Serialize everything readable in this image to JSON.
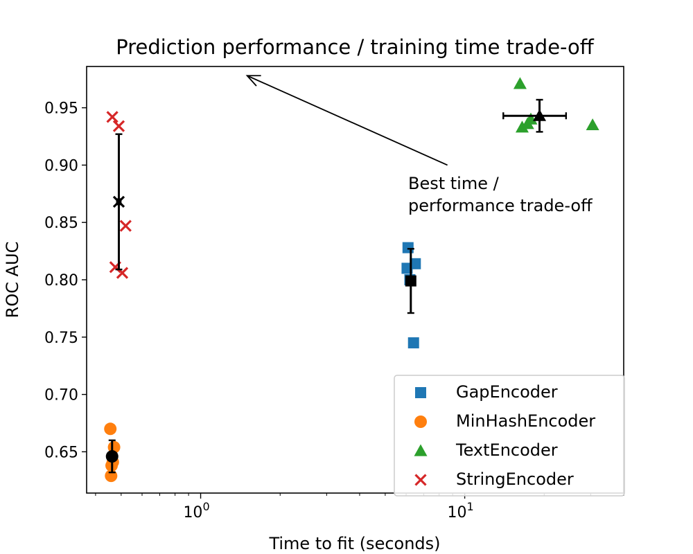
{
  "chart_data": {
    "type": "scatter",
    "title": "Prediction performance / training time trade-off",
    "xlabel": "Time to fit (seconds)",
    "ylabel": "ROC AUC",
    "xscale": "log",
    "xlim": [
      0.37,
      40
    ],
    "ylim": [
      0.614,
      0.986
    ],
    "y_ticks": [
      "0.65",
      "0.70",
      "0.75",
      "0.80",
      "0.85",
      "0.90",
      "0.95"
    ],
    "x_ticks": [
      {
        "value": 1,
        "base": "10",
        "exp": "0"
      },
      {
        "value": 10,
        "base": "10",
        "exp": "1"
      }
    ],
    "grid": false,
    "legend_position": "lower-right",
    "series": [
      {
        "name": "GapEncoder",
        "marker": "square",
        "color": "#1f77b4",
        "x": [
          6.1,
          6.5,
          6.05,
          6.2,
          6.4
        ],
        "y": [
          0.828,
          0.814,
          0.81,
          0.8,
          0.745
        ],
        "summary": {
          "x": 6.25,
          "y": 0.799,
          "xerr": 0.1,
          "yerr": 0.028
        }
      },
      {
        "name": "MinHashEncoder",
        "marker": "circle",
        "color": "#ff7f0e",
        "x": [
          0.455,
          0.47,
          0.465,
          0.46,
          0.458
        ],
        "y": [
          0.67,
          0.654,
          0.641,
          0.638,
          0.629
        ],
        "summary": {
          "x": 0.462,
          "y": 0.646,
          "xerr": 0.002,
          "yerr": 0.014
        }
      },
      {
        "name": "TextEncoder",
        "marker": "triangle",
        "color": "#2ca02c",
        "x": [
          16.2,
          16.5,
          17.3,
          17.8,
          30.5
        ],
        "y": [
          0.971,
          0.933,
          0.936,
          0.94,
          0.935
        ],
        "summary": {
          "x": 19.2,
          "y": 0.943,
          "xerr": [
            5.2,
            5.0
          ],
          "yerr": 0.014
        }
      },
      {
        "name": "StringEncoder",
        "marker": "x",
        "color": "#d62728",
        "x": [
          0.463,
          0.49,
          0.52,
          0.475,
          0.505
        ],
        "y": [
          0.942,
          0.934,
          0.847,
          0.811,
          0.806
        ],
        "summary": {
          "x": 0.49,
          "y": 0.868,
          "xerr": 0.008,
          "yerr": 0.059
        }
      }
    ],
    "annotation": {
      "text_lines": [
        "Best time /",
        "performance trade-off"
      ],
      "arrow_from": {
        "x": 8.6,
        "y": 0.9
      },
      "arrow_to": {
        "x": 1.5,
        "y": 0.978
      }
    }
  }
}
